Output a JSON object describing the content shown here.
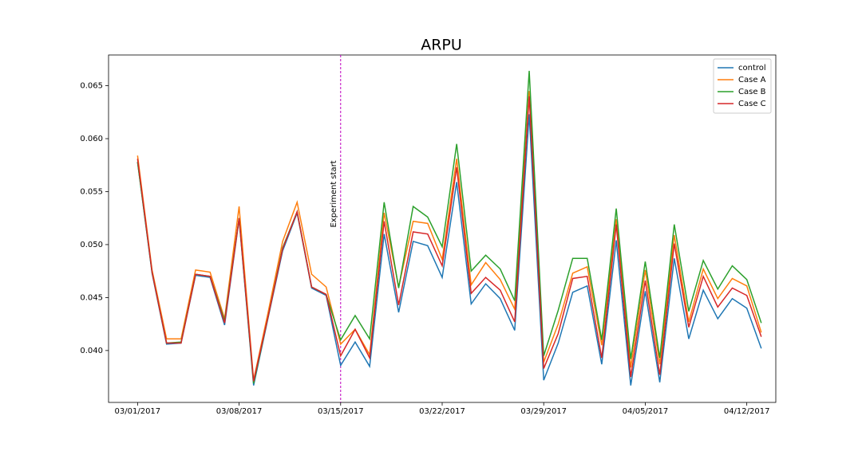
{
  "chart_data": {
    "type": "line",
    "title": "ARPU",
    "x": [
      "2017-03-01",
      "2017-03-02",
      "2017-03-03",
      "2017-03-04",
      "2017-03-05",
      "2017-03-06",
      "2017-03-07",
      "2017-03-08",
      "2017-03-09",
      "2017-03-10",
      "2017-03-11",
      "2017-03-12",
      "2017-03-13",
      "2017-03-14",
      "2017-03-15",
      "2017-03-16",
      "2017-03-17",
      "2017-03-18",
      "2017-03-19",
      "2017-03-20",
      "2017-03-21",
      "2017-03-22",
      "2017-03-23",
      "2017-03-24",
      "2017-03-25",
      "2017-03-26",
      "2017-03-27",
      "2017-03-28",
      "2017-03-29",
      "2017-03-30",
      "2017-03-31",
      "2017-04-01",
      "2017-04-02",
      "2017-04-03",
      "2017-04-04",
      "2017-04-05",
      "2017-04-06",
      "2017-04-07",
      "2017-04-08",
      "2017-04-09",
      "2017-04-10",
      "2017-04-11",
      "2017-04-12",
      "2017-04-13"
    ],
    "series": [
      {
        "name": "control",
        "color": "#1f77b4",
        "values": [
          0.0578,
          0.0473,
          0.0406,
          0.0407,
          0.0471,
          0.0469,
          0.0424,
          0.0524,
          0.0367,
          0.0431,
          0.0494,
          0.053,
          0.0459,
          0.0452,
          0.0386,
          0.0408,
          0.0385,
          0.051,
          0.0436,
          0.0503,
          0.0499,
          0.0469,
          0.0559,
          0.0444,
          0.0463,
          0.0449,
          0.0419,
          0.0623,
          0.0372,
          0.0407,
          0.0455,
          0.0461,
          0.0387,
          0.0504,
          0.0367,
          0.0456,
          0.037,
          0.0487,
          0.0411,
          0.0457,
          0.043,
          0.0449,
          0.044,
          0.0402
        ]
      },
      {
        "name": "Case A",
        "color": "#ff7f0e",
        "values": [
          0.0584,
          0.0476,
          0.0411,
          0.0411,
          0.0476,
          0.0474,
          0.043,
          0.0536,
          0.0372,
          0.0436,
          0.0503,
          0.054,
          0.0472,
          0.046,
          0.0406,
          0.042,
          0.0396,
          0.053,
          0.046,
          0.0522,
          0.052,
          0.0486,
          0.0581,
          0.0462,
          0.0483,
          0.0467,
          0.0439,
          0.0645,
          0.0389,
          0.0425,
          0.0473,
          0.0479,
          0.0405,
          0.0524,
          0.0384,
          0.0476,
          0.0387,
          0.0509,
          0.0427,
          0.0477,
          0.0449,
          0.0468,
          0.0461,
          0.0417
        ]
      },
      {
        "name": "Case B",
        "color": "#2ca02c",
        "values": [
          0.0578,
          0.0474,
          0.0407,
          0.0408,
          0.0472,
          0.047,
          0.0428,
          0.0525,
          0.0369,
          0.0432,
          0.0497,
          0.0531,
          0.046,
          0.0453,
          0.041,
          0.0433,
          0.0411,
          0.054,
          0.0459,
          0.0536,
          0.0526,
          0.0498,
          0.0595,
          0.0475,
          0.049,
          0.0477,
          0.0447,
          0.0664,
          0.0395,
          0.0438,
          0.0487,
          0.0487,
          0.041,
          0.0534,
          0.0392,
          0.0484,
          0.0393,
          0.0519,
          0.0437,
          0.0485,
          0.0458,
          0.048,
          0.0467,
          0.0426
        ]
      },
      {
        "name": "Case C",
        "color": "#d62728",
        "values": [
          0.0581,
          0.0474,
          0.0407,
          0.0407,
          0.0472,
          0.047,
          0.0426,
          0.0525,
          0.0371,
          0.0432,
          0.0496,
          0.0531,
          0.046,
          0.0453,
          0.0395,
          0.042,
          0.0393,
          0.0522,
          0.0443,
          0.0512,
          0.051,
          0.048,
          0.0573,
          0.0454,
          0.0469,
          0.0457,
          0.0427,
          0.064,
          0.0383,
          0.0416,
          0.0468,
          0.047,
          0.0393,
          0.0519,
          0.0375,
          0.0466,
          0.0377,
          0.0501,
          0.0422,
          0.047,
          0.0441,
          0.0459,
          0.0452,
          0.0413
        ]
      }
    ],
    "xlim": [
      "2017-02-27",
      "2017-04-14"
    ],
    "xticks": [
      {
        "value": "2017-03-01",
        "label": "03/01/2017"
      },
      {
        "value": "2017-03-08",
        "label": "03/08/2017"
      },
      {
        "value": "2017-03-15",
        "label": "03/15/2017"
      },
      {
        "value": "2017-03-22",
        "label": "03/22/2017"
      },
      {
        "value": "2017-03-29",
        "label": "03/29/2017"
      },
      {
        "value": "2017-04-05",
        "label": "04/05/2017"
      },
      {
        "value": "2017-04-12",
        "label": "04/12/2017"
      }
    ],
    "ylim": [
      0.0351,
      0.0679
    ],
    "yticks": [
      {
        "value": 0.04,
        "label": "0.040"
      },
      {
        "value": 0.045,
        "label": "0.045"
      },
      {
        "value": 0.05,
        "label": "0.050"
      },
      {
        "value": 0.055,
        "label": "0.055"
      },
      {
        "value": 0.06,
        "label": "0.060"
      },
      {
        "value": 0.065,
        "label": "0.065"
      }
    ],
    "annotations": [
      {
        "x": "2017-03-15",
        "text": "Experiment start",
        "color": "#bf00bf"
      }
    ],
    "legend": "upper right",
    "grid": false
  }
}
